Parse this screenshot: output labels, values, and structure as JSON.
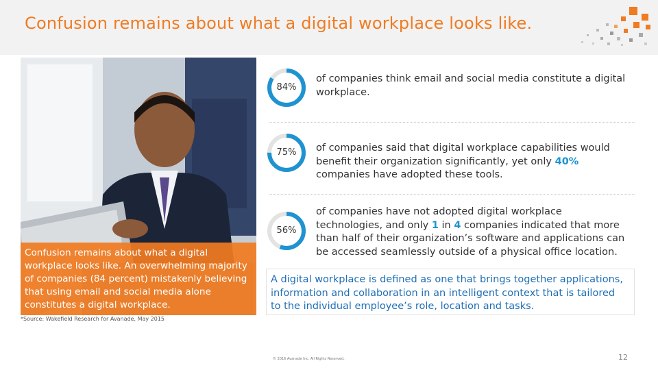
{
  "header": {
    "title": "Confusion remains about what a digital workplace looks like."
  },
  "photo_caption": "Confusion remains about what a digital workplace looks like. An overwhelming majority of companies (84 percent) mistakenly believing that using email and social media alone constitutes a digital workplace.",
  "stats": [
    {
      "value_label": "84%",
      "fraction": 0.84,
      "text": "of companies think email and social media constitute a digital workplace."
    },
    {
      "value_label": "75%",
      "fraction": 0.75,
      "text_before": "of companies said that digital workplace capabilities would benefit their organization significantly, yet only ",
      "highlight": "40%",
      "text_after": " companies have adopted these tools."
    },
    {
      "value_label": "56%",
      "fraction": 0.56,
      "text_before": "of companies have not adopted digital workplace technologies, and only ",
      "highlight_1": "1",
      "text_mid_1": " in ",
      "highlight_2": "4",
      "text_after": " companies indicated that more than half of their organization’s software and applications can be accessed seamlessly outside of a physical office location."
    }
  ],
  "definition": "A digital workplace is defined as one that brings together applications, information and collaboration in an intelligent context that is tailored to the individual employee’s role, location and tasks.",
  "source_note": "*Source: Wakefield Research for Avanade, May 2015",
  "copyright": "© 2016 Avanade Inc. All Rights Reserved.",
  "page_number": "12",
  "colors": {
    "brand_orange": "#f07b21",
    "ring_blue": "#1f93d1",
    "ring_track": "#e3e3e3",
    "definition_blue": "#1f6fb5"
  },
  "icons": {
    "logo": "avanade-dot-mosaic-logo",
    "photo": "businessman-with-laptop-photo"
  }
}
